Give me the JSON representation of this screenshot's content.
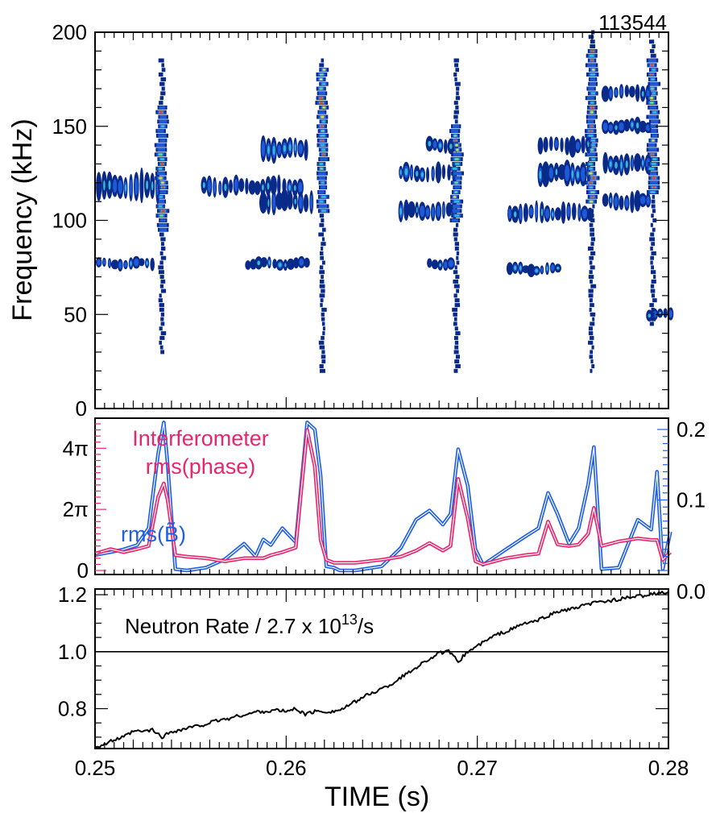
{
  "shot_number": "113544",
  "colors": {
    "blue": "#1f5fe6",
    "magenta": "#e8266e",
    "black": "#000000",
    "spectrogram_scale": [
      "#0a2a8a",
      "#1e5ad8",
      "#35b8d8",
      "#6fd08a",
      "#e8d83a",
      "#e84a2a"
    ]
  },
  "chart_data": [
    {
      "type": "heatmap",
      "name": "spectrogram",
      "ylabel": "Frequency (kHz)",
      "ylim": [
        0,
        200
      ],
      "xlim": [
        0.25,
        0.28
      ],
      "ytick_labels": [
        "0",
        "50",
        "100",
        "150",
        "200"
      ],
      "yticks": [
        0,
        50,
        100,
        150,
        200
      ],
      "bursts": [
        {
          "t": 0.2535,
          "f_range": [
            30,
            185
          ],
          "core": [
            95,
            160
          ]
        },
        {
          "t": 0.2619,
          "f_range": [
            20,
            185
          ],
          "core": [
            105,
            180
          ]
        },
        {
          "t": 0.2689,
          "f_range": [
            20,
            185
          ],
          "core": [
            100,
            150
          ]
        },
        {
          "t": 0.276,
          "f_range": [
            20,
            200
          ],
          "core": [
            110,
            190
          ]
        },
        {
          "t": 0.2792,
          "f_range": [
            45,
            195
          ],
          "core": [
            115,
            185
          ]
        }
      ],
      "mode_bands": [
        {
          "t_range": [
            0.2502,
            0.2535
          ],
          "f": 118,
          "df": 8
        },
        {
          "t_range": [
            0.2502,
            0.2532
          ],
          "f": 77,
          "df": 3
        },
        {
          "t_range": [
            0.2557,
            0.261
          ],
          "f": 118,
          "df": 5
        },
        {
          "t_range": [
            0.2588,
            0.2612
          ],
          "f": 138,
          "df": 6
        },
        {
          "t_range": [
            0.2588,
            0.2616
          ],
          "f": 110,
          "df": 6
        },
        {
          "t_range": [
            0.258,
            0.2611
          ],
          "f": 77,
          "df": 3
        },
        {
          "t_range": [
            0.266,
            0.269
          ],
          "f": 105,
          "df": 5
        },
        {
          "t_range": [
            0.266,
            0.269
          ],
          "f": 125,
          "df": 5
        },
        {
          "t_range": [
            0.2675,
            0.269
          ],
          "f": 140,
          "df": 4
        },
        {
          "t_range": [
            0.2675,
            0.2688
          ],
          "f": 77,
          "df": 3
        },
        {
          "t_range": [
            0.2717,
            0.276
          ],
          "f": 104,
          "df": 5
        },
        {
          "t_range": [
            0.2733,
            0.276
          ],
          "f": 125,
          "df": 6
        },
        {
          "t_range": [
            0.2733,
            0.276
          ],
          "f": 140,
          "df": 5
        },
        {
          "t_range": [
            0.2717,
            0.2745
          ],
          "f": 74,
          "df": 3
        },
        {
          "t_range": [
            0.2767,
            0.279
          ],
          "f": 110,
          "df": 5
        },
        {
          "t_range": [
            0.2767,
            0.279
          ],
          "f": 130,
          "df": 5
        },
        {
          "t_range": [
            0.2767,
            0.279
          ],
          "f": 150,
          "df": 4
        },
        {
          "t_range": [
            0.2767,
            0.279
          ],
          "f": 168,
          "df": 4
        },
        {
          "t_range": [
            0.279,
            0.2803
          ],
          "f": 50,
          "df": 3
        }
      ]
    },
    {
      "type": "line",
      "name": "fluctuation-rms",
      "annotations": [
        "Interferometer",
        "rms(phase)",
        "rms(B̃)"
      ],
      "left_tick_labels": [
        "0",
        "2π",
        "4π"
      ],
      "right_tick_labels": [
        "0.0",
        "0.1",
        "0.2"
      ],
      "left_ylim": [
        0,
        4.8
      ],
      "right_ylim": [
        0,
        0.2
      ],
      "xlim": [
        0.25,
        0.28
      ],
      "series": [
        {
          "color": "#1f5fe6",
          "axis": "right",
          "x": [
            0.25,
            0.2508,
            0.2515,
            0.2522,
            0.2528,
            0.2533,
            0.2536,
            0.2538,
            0.2542,
            0.2548,
            0.2558,
            0.2568,
            0.2578,
            0.2584,
            0.2588,
            0.2592,
            0.2598,
            0.2605,
            0.2611,
            0.2615,
            0.2618,
            0.2621,
            0.2625,
            0.2628,
            0.2636,
            0.265,
            0.266,
            0.2668,
            0.2675,
            0.2682,
            0.2686,
            0.269,
            0.2695,
            0.2699,
            0.2703,
            0.2715,
            0.2725,
            0.2732,
            0.2737,
            0.2742,
            0.2748,
            0.2753,
            0.2758,
            0.2761,
            0.2765,
            0.2774,
            0.2784,
            0.2791,
            0.2794,
            0.2797,
            0.2801
          ],
          "y": [
            0.022,
            0.026,
            0.03,
            0.036,
            0.06,
            0.165,
            0.21,
            0.15,
            0.002,
            0.0,
            0.004,
            0.016,
            0.038,
            0.02,
            0.044,
            0.036,
            0.06,
            0.04,
            0.21,
            0.2,
            0.135,
            0.006,
            0.004,
            0.0,
            0.0,
            0.006,
            0.032,
            0.072,
            0.085,
            0.065,
            0.08,
            0.172,
            0.12,
            0.03,
            0.008,
            0.03,
            0.048,
            0.06,
            0.11,
            0.08,
            0.038,
            0.06,
            0.122,
            0.175,
            0.002,
            0.004,
            0.072,
            0.058,
            0.14,
            0.002,
            0.055
          ]
        },
        {
          "color": "#e8266e",
          "axis": "left",
          "x": [
            0.25,
            0.2508,
            0.2515,
            0.2522,
            0.2528,
            0.2533,
            0.2536,
            0.2538,
            0.2542,
            0.2548,
            0.2558,
            0.2568,
            0.2578,
            0.2584,
            0.2588,
            0.2592,
            0.2598,
            0.2605,
            0.2611,
            0.2615,
            0.2618,
            0.2621,
            0.2625,
            0.2628,
            0.2636,
            0.265,
            0.266,
            0.2668,
            0.2675,
            0.2682,
            0.2686,
            0.269,
            0.2695,
            0.2699,
            0.2703,
            0.2715,
            0.2725,
            0.2732,
            0.2737,
            0.2742,
            0.2748,
            0.2753,
            0.2758,
            0.2761,
            0.2765,
            0.2774,
            0.2784,
            0.2791,
            0.2794,
            0.2797,
            0.2801
          ],
          "y": [
            0.55,
            0.7,
            0.6,
            0.7,
            0.8,
            2.4,
            2.85,
            2.3,
            0.5,
            0.45,
            0.4,
            0.3,
            0.4,
            0.4,
            0.4,
            0.5,
            0.6,
            0.75,
            4.6,
            3.4,
            1.0,
            0.35,
            0.25,
            0.25,
            0.25,
            0.35,
            0.45,
            0.65,
            0.9,
            0.65,
            0.8,
            3.0,
            1.7,
            0.3,
            0.2,
            0.4,
            0.5,
            0.55,
            1.6,
            0.85,
            0.8,
            0.85,
            1.2,
            2.05,
            0.8,
            0.95,
            1.05,
            1.0,
            1.0,
            0.35,
            0.6
          ]
        }
      ]
    },
    {
      "type": "line",
      "name": "neutron-rate",
      "title": "Neutron Rate / 2.7 x 10",
      "title_sup": "13",
      "title_tail": "/s",
      "xlabel": "TIME (s)",
      "ylim": [
        0.66,
        1.22
      ],
      "reference_line": 1.0,
      "xlim": [
        0.25,
        0.28
      ],
      "xtick_labels": [
        "0.25",
        "0.26",
        "0.27",
        "0.28"
      ],
      "ytick_labels": [
        "0.8",
        "1.0",
        "1.2"
      ],
      "x": [
        0.25,
        0.2505,
        0.251,
        0.2515,
        0.252,
        0.2525,
        0.253,
        0.2535,
        0.254,
        0.2545,
        0.255,
        0.2555,
        0.256,
        0.2565,
        0.257,
        0.2575,
        0.258,
        0.2585,
        0.259,
        0.2595,
        0.26,
        0.2605,
        0.261,
        0.2615,
        0.262,
        0.2625,
        0.263,
        0.2635,
        0.264,
        0.2645,
        0.265,
        0.2655,
        0.266,
        0.2665,
        0.267,
        0.2675,
        0.268,
        0.2685,
        0.269,
        0.2695,
        0.27,
        0.2705,
        0.271,
        0.2715,
        0.272,
        0.2725,
        0.273,
        0.2735,
        0.274,
        0.2745,
        0.275,
        0.2755,
        0.276,
        0.2765,
        0.277,
        0.2775,
        0.278,
        0.2785,
        0.279,
        0.2795,
        0.28
      ],
      "y": [
        0.665,
        0.675,
        0.69,
        0.7,
        0.72,
        0.72,
        0.725,
        0.7,
        0.72,
        0.725,
        0.735,
        0.74,
        0.75,
        0.76,
        0.765,
        0.775,
        0.78,
        0.79,
        0.79,
        0.795,
        0.79,
        0.8,
        0.78,
        0.79,
        0.79,
        0.79,
        0.8,
        0.82,
        0.84,
        0.855,
        0.87,
        0.885,
        0.91,
        0.93,
        0.955,
        0.975,
        0.995,
        1.0,
        0.965,
        1.0,
        1.02,
        1.04,
        1.06,
        1.07,
        1.085,
        1.1,
        1.105,
        1.12,
        1.135,
        1.145,
        1.15,
        1.16,
        1.17,
        1.175,
        1.18,
        1.185,
        1.19,
        1.195,
        1.2,
        1.205,
        1.21
      ]
    }
  ]
}
